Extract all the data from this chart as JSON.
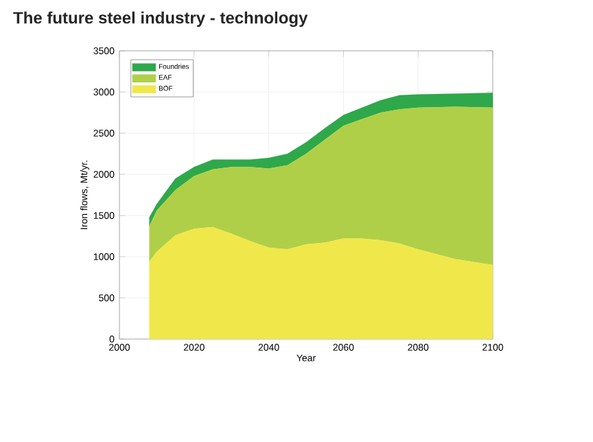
{
  "chart_data": {
    "type": "area",
    "title": "The future steel industry - technology",
    "xlabel": "Year",
    "ylabel": "Iron flows, Mt/yr.",
    "stacked": true,
    "x": [
      2008,
      2010,
      2015,
      2020,
      2025,
      2030,
      2035,
      2040,
      2045,
      2050,
      2055,
      2060,
      2065,
      2070,
      2075,
      2080,
      2090,
      2100
    ],
    "series": [
      {
        "name": "BOF",
        "color": "#f0e84a",
        "values": [
          940,
          1060,
          1260,
          1340,
          1360,
          1280,
          1190,
          1110,
          1090,
          1150,
          1170,
          1220,
          1220,
          1200,
          1160,
          1090,
          970,
          900
        ]
      },
      {
        "name": "EAF",
        "color": "#b0cf48",
        "values": [
          430,
          500,
          550,
          640,
          700,
          810,
          900,
          960,
          1020,
          1100,
          1250,
          1370,
          1450,
          1550,
          1630,
          1720,
          1850,
          1910
        ]
      },
      {
        "name": "Foundries",
        "color": "#2ea84a",
        "values": [
          110,
          80,
          140,
          110,
          120,
          90,
          90,
          130,
          140,
          140,
          140,
          130,
          140,
          150,
          170,
          160,
          160,
          180
        ]
      }
    ],
    "xlim": [
      2000,
      2100
    ],
    "xticks": [
      2000,
      2020,
      2040,
      2060,
      2080,
      2100
    ],
    "ylim": [
      0,
      3500
    ],
    "yticks": [
      0,
      500,
      1000,
      1500,
      2000,
      2500,
      3000,
      3500
    ],
    "grid": true,
    "legend": "top left"
  }
}
